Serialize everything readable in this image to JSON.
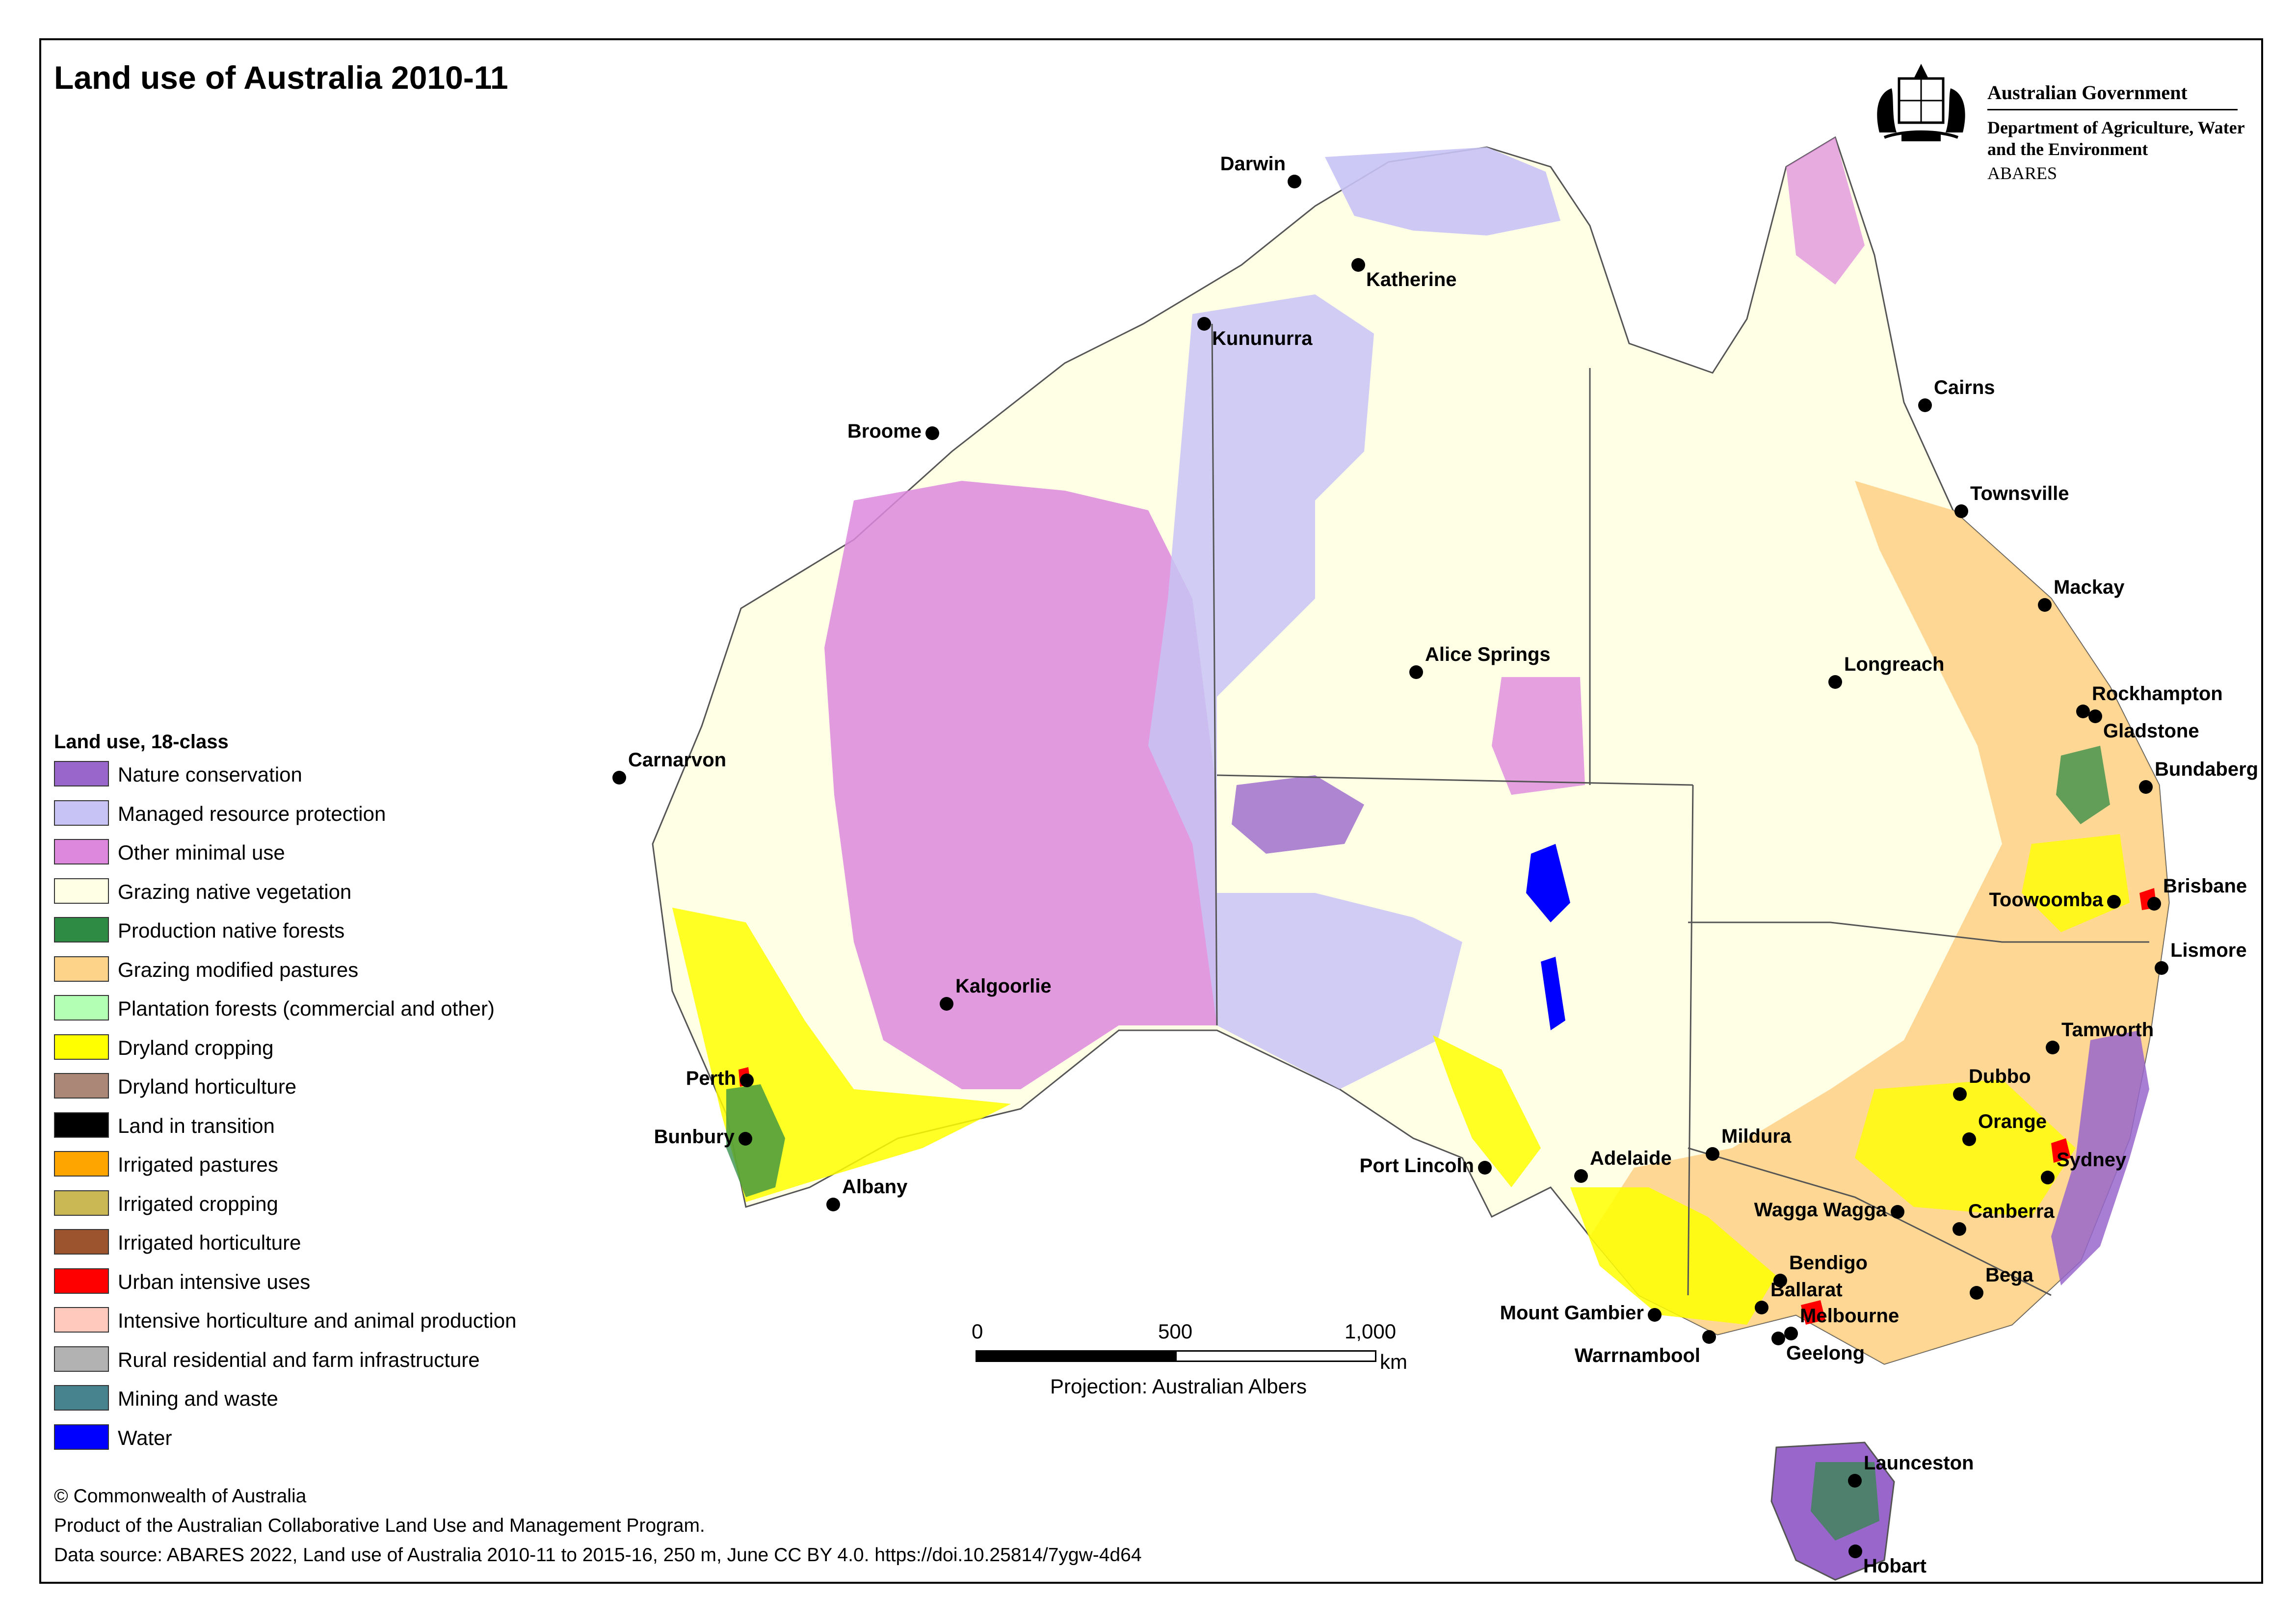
{
  "title": "Land use of Australia 2010-11",
  "government": {
    "name": "Australian Government",
    "department": "Department of Agriculture, Water and the Environment",
    "agency": "ABARES"
  },
  "legend": {
    "title": "Land use, 18-class",
    "items": [
      {
        "label": "Nature conservation",
        "color": "#9966CC"
      },
      {
        "label": "Managed resource protection",
        "color": "#C8C3F5"
      },
      {
        "label": "Other minimal use",
        "color": "#DD88DD"
      },
      {
        "label": "Grazing native vegetation",
        "color": "#FFFFE6"
      },
      {
        "label": "Production native forests",
        "color": "#2E8B44"
      },
      {
        "label": "Grazing modified pastures",
        "color": "#FDD38A"
      },
      {
        "label": "Plantation forests (commercial and other)",
        "color": "#B3FFB3"
      },
      {
        "label": "Dryland cropping",
        "color": "#FFFF00"
      },
      {
        "label": "Dryland horticulture",
        "color": "#AB8778"
      },
      {
        "label": "Land in transition",
        "color": "#000000"
      },
      {
        "label": "Irrigated pastures",
        "color": "#FFA500"
      },
      {
        "label": "Irrigated cropping",
        "color": "#C9B854"
      },
      {
        "label": "Irrigated horticulture",
        "color": "#9C542E"
      },
      {
        "label": "Urban intensive uses",
        "color": "#FF0000"
      },
      {
        "label": "Intensive horticulture and animal production",
        "color": "#FFC9BE"
      },
      {
        "label": "Rural residential and farm infrastructure",
        "color": "#B2B2B2"
      },
      {
        "label": "Mining and waste",
        "color": "#47828F"
      },
      {
        "label": "Water",
        "color": "#0000FF"
      }
    ]
  },
  "places": [
    {
      "name": "Darwin"
    },
    {
      "name": "Katherine"
    },
    {
      "name": "Kununurra"
    },
    {
      "name": "Broome"
    },
    {
      "name": "Cairns"
    },
    {
      "name": "Townsville"
    },
    {
      "name": "Mackay"
    },
    {
      "name": "Longreach"
    },
    {
      "name": "Alice Springs"
    },
    {
      "name": "Rockhampton"
    },
    {
      "name": "Gladstone"
    },
    {
      "name": "Bundaberg"
    },
    {
      "name": "Carnarvon"
    },
    {
      "name": "Toowoomba"
    },
    {
      "name": "Brisbane"
    },
    {
      "name": "Lismore"
    },
    {
      "name": "Kalgoorlie"
    },
    {
      "name": "Tamworth"
    },
    {
      "name": "Dubbo"
    },
    {
      "name": "Perth"
    },
    {
      "name": "Orange"
    },
    {
      "name": "Mildura"
    },
    {
      "name": "Sydney"
    },
    {
      "name": "Bunbury"
    },
    {
      "name": "Port Lincoln"
    },
    {
      "name": "Adelaide"
    },
    {
      "name": "Albany"
    },
    {
      "name": "Wagga Wagga"
    },
    {
      "name": "Canberra"
    },
    {
      "name": "Bendigo"
    },
    {
      "name": "Bega"
    },
    {
      "name": "Ballarat"
    },
    {
      "name": "Mount Gambier"
    },
    {
      "name": "Melbourne"
    },
    {
      "name": "Warrnambool"
    },
    {
      "name": "Geelong"
    },
    {
      "name": "Launceston"
    },
    {
      "name": "Hobart"
    }
  ],
  "scale_bar": {
    "ticks": [
      "0",
      "500",
      "1,000"
    ],
    "unit": "km",
    "projection": "Projection: Australian Albers"
  },
  "credits": [
    "© Commonwealth of Australia",
    "Product of the Australian Collaborative Land Use and Management Program.",
    "Data source: ABARES 2022, Land use of Australia 2010-11 to 2015-16, 250 m, June CC BY 4.0. https://doi.10.25814/7ygw-4d64"
  ]
}
